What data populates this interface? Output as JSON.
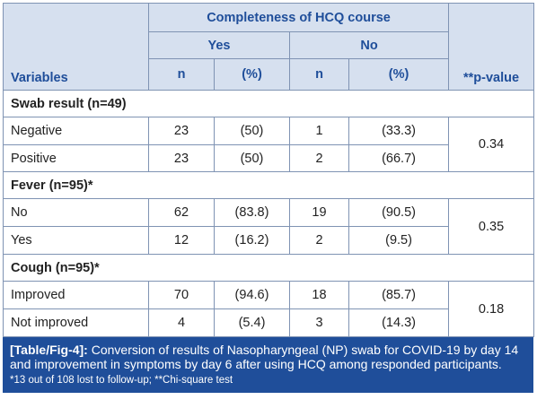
{
  "header": {
    "group_title": "Completeness of HCQ course",
    "yes_label": "Yes",
    "no_label": "No",
    "variables_label": "Variables",
    "n_label": "n",
    "pct_label": "(%)",
    "pvalue_label": "**p-value"
  },
  "sections": [
    {
      "title": "Swab result (n=49)",
      "rows": [
        {
          "label": "Negative",
          "yes_n": "23",
          "yes_pct": "(50)",
          "no_n": "1",
          "no_pct": "(33.3)"
        },
        {
          "label": "Positive",
          "yes_n": "23",
          "yes_pct": "(50)",
          "no_n": "2",
          "no_pct": "(66.7)"
        }
      ],
      "p_value": "0.34"
    },
    {
      "title": "Fever (n=95)*",
      "rows": [
        {
          "label": "No",
          "yes_n": "62",
          "yes_pct": "(83.8)",
          "no_n": "19",
          "no_pct": "(90.5)"
        },
        {
          "label": "Yes",
          "yes_n": "12",
          "yes_pct": "(16.2)",
          "no_n": "2",
          "no_pct": "(9.5)"
        }
      ],
      "p_value": "0.35"
    },
    {
      "title": "Cough (n=95)*",
      "rows": [
        {
          "label": "Improved",
          "yes_n": "70",
          "yes_pct": "(94.6)",
          "no_n": "18",
          "no_pct": "(85.7)"
        },
        {
          "label": "Not improved",
          "yes_n": "4",
          "yes_pct": "(5.4)",
          "no_n": "3",
          "no_pct": "(14.3)"
        }
      ],
      "p_value": "0.18"
    }
  ],
  "caption": {
    "label": "[Table/Fig-4]:",
    "text": " Conversion of results of Nasopharyngeal (NP) swab for COVID-19 by day 14 and improvement in symptoms by day 6 after using HCQ among responded participants.",
    "note": "*13 out of 108 lost to follow-up; **Chi-square test"
  },
  "colors": {
    "header_bg": "#d6e0ef",
    "header_text": "#1f4e9a",
    "caption_bg": "#1f4e9a",
    "border": "#7f93b3"
  }
}
